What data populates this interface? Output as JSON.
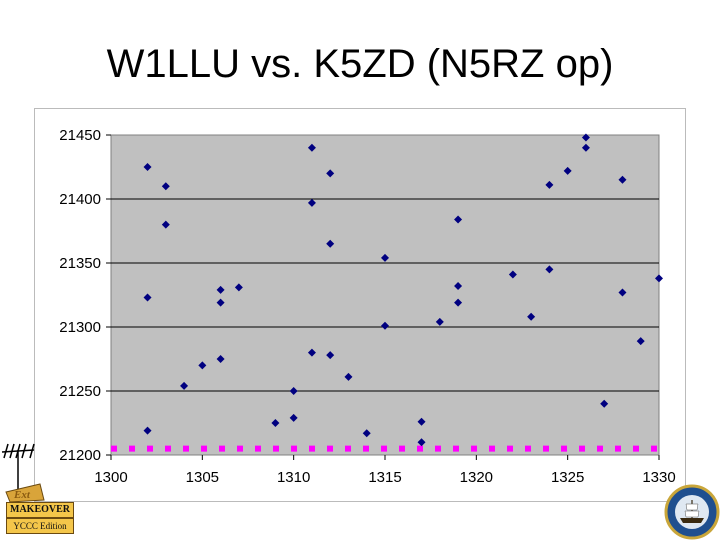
{
  "title": "W1LLU vs. K5ZD (N5RZ op)",
  "logo": {
    "line1": "MAKEOVER",
    "line2": "YCCC Edition"
  },
  "colors": {
    "plot_bg": "#c0c0c0",
    "points": "#000080",
    "line": "#ff00ff"
  },
  "chart_data": {
    "type": "scatter",
    "title": "W1LLU vs. K5ZD (N5RZ op)",
    "xlabel": "",
    "ylabel": "",
    "xlim": [
      1300,
      1330
    ],
    "ylim": [
      21200,
      21450
    ],
    "x_ticks": [
      "1300",
      "1305",
      "1310",
      "1315",
      "1320",
      "1325",
      "1330"
    ],
    "y_ticks": [
      "21450",
      "21400",
      "21350",
      "21300",
      "21250",
      "21200"
    ],
    "grid": "horizontal",
    "series": [
      {
        "type": "scatter",
        "points": [
          [
            1302,
            21425
          ],
          [
            1302,
            21323
          ],
          [
            1302,
            21219
          ],
          [
            1303,
            21410
          ],
          [
            1303,
            21380
          ],
          [
            1304,
            21254
          ],
          [
            1305,
            21270
          ],
          [
            1306,
            21329
          ],
          [
            1306,
            21319
          ],
          [
            1306,
            21275
          ],
          [
            1307,
            21331
          ],
          [
            1309,
            21225
          ],
          [
            1310,
            21250
          ],
          [
            1310,
            21229
          ],
          [
            1311,
            21440
          ],
          [
            1311,
            21397
          ],
          [
            1311,
            21280
          ],
          [
            1312,
            21420
          ],
          [
            1312,
            21365
          ],
          [
            1312,
            21278
          ],
          [
            1313,
            21261
          ],
          [
            1314,
            21217
          ],
          [
            1315,
            21354
          ],
          [
            1315,
            21301
          ],
          [
            1317,
            21226
          ],
          [
            1317,
            21210
          ],
          [
            1318,
            21304
          ],
          [
            1319,
            21384
          ],
          [
            1319,
            21332
          ],
          [
            1319,
            21319
          ],
          [
            1322,
            21341
          ],
          [
            1323,
            21308
          ],
          [
            1324,
            21411
          ],
          [
            1324,
            21345
          ],
          [
            1325,
            21422
          ],
          [
            1326,
            21448
          ],
          [
            1326,
            21440
          ],
          [
            1327,
            21240
          ],
          [
            1328,
            21415
          ],
          [
            1328,
            21327
          ],
          [
            1329,
            21289
          ],
          [
            1330,
            21338
          ]
        ]
      },
      {
        "type": "line",
        "style": "dotted",
        "points": [
          [
            1300,
            21205
          ],
          [
            1330,
            21205
          ]
        ]
      }
    ]
  }
}
